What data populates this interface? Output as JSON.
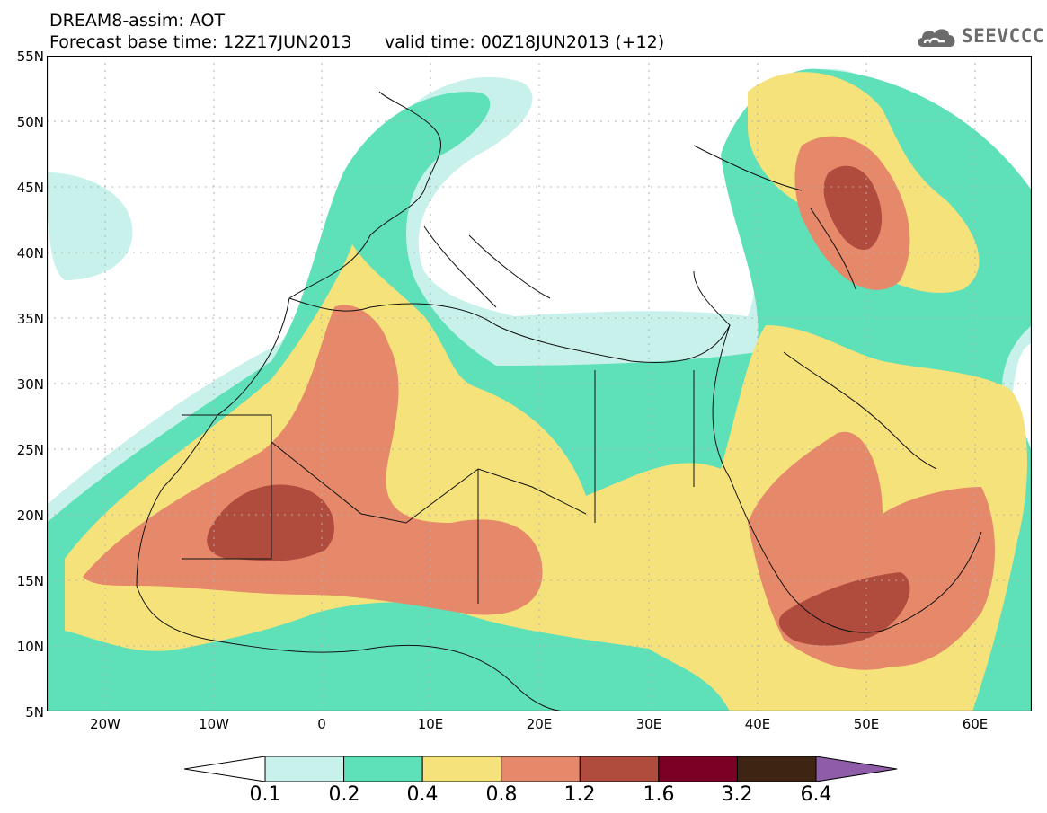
{
  "header": {
    "title_line1": "DREAM8-assim: AOT",
    "title_line2": "Forecast base time: 12Z17JUN2013      valid time: 00Z18JUN2013 (+12)"
  },
  "logo": {
    "text": "SEEVCCC",
    "icon": "cloud-icon"
  },
  "map": {
    "lat_labels": [
      "55N",
      "50N",
      "45N",
      "40N",
      "35N",
      "30N",
      "25N",
      "20N",
      "15N",
      "10N",
      "5N"
    ],
    "lon_labels": [
      "20W",
      "10W",
      "0",
      "10E",
      "20E",
      "30E",
      "40E",
      "50E",
      "60E"
    ],
    "extent": {
      "lon": [
        -25,
        65
      ],
      "lat": [
        5,
        55
      ]
    },
    "colors": {
      "c01": "#c8f1ec",
      "c02": "#5ee0b8",
      "c04": "#f6e27a",
      "c08": "#e6886a",
      "c12": "#b04c3e",
      "c16": "#7a0025",
      "c32": "#3d2413",
      "c64": "#8e5ca8"
    }
  },
  "colorbar": {
    "labels": [
      "0.1",
      "0.2",
      "0.4",
      "0.8",
      "1.2",
      "1.6",
      "3.2",
      "6.4"
    ],
    "colors": [
      "#c8f1ec",
      "#5ee0b8",
      "#f6e27a",
      "#e6886a",
      "#b04c3e",
      "#7a0025",
      "#3d2413"
    ],
    "under_color": "#ffffff",
    "over_color": "#8e5ca8"
  }
}
